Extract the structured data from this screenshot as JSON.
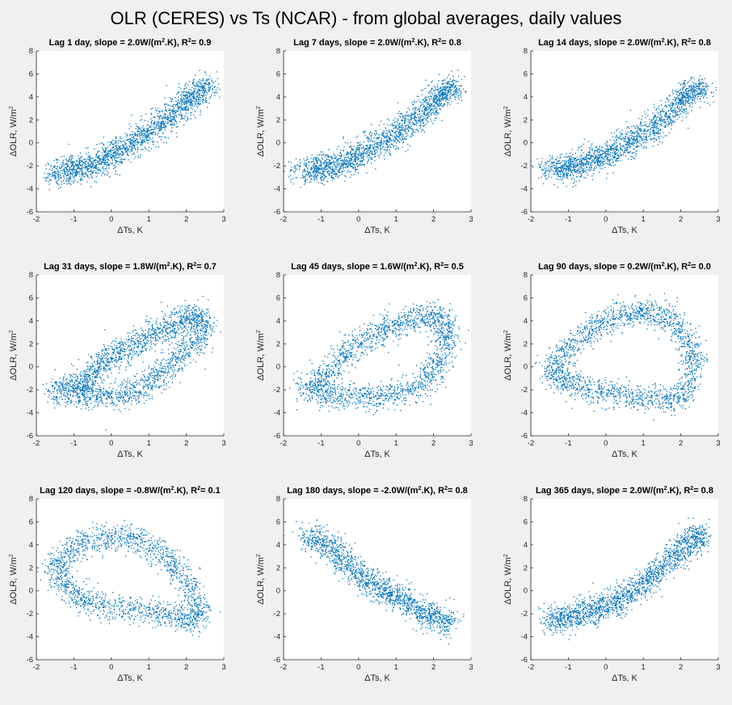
{
  "figure": {
    "title": "OLR (CERES) vs Ts (NCAR) - from global averages, daily values",
    "background": "#f0f0f0",
    "marker_color": "#0072bd"
  },
  "chart_data": [
    {
      "type": "scatter",
      "title_parts": [
        "Lag 1 day, slope = 2.0W/(m",
        "2",
        ".K), R",
        "2",
        "= 0.9"
      ],
      "xlabel": "ΔTs, K",
      "ylabel": [
        "ΔOLR, W/m",
        "2"
      ],
      "xlim": [
        -2,
        3
      ],
      "ylim": [
        -6,
        8
      ],
      "xticks": [
        -2,
        -1,
        0,
        1,
        2,
        3
      ],
      "yticks": [
        -6,
        -4,
        -2,
        0,
        2,
        4,
        6,
        8
      ],
      "grid": false,
      "points": [
        [
          -1.7,
          -2.7
        ],
        [
          -1.2,
          -2.5
        ],
        [
          -1.0,
          -2.3
        ],
        [
          -0.8,
          -2.2
        ],
        [
          -0.5,
          -1.9
        ],
        [
          -0.2,
          -1.5
        ],
        [
          0.0,
          -1.0
        ],
        [
          0.3,
          -0.5
        ],
        [
          0.6,
          0.1
        ],
        [
          0.9,
          0.7
        ],
        [
          1.2,
          1.3
        ],
        [
          1.5,
          2.0
        ],
        [
          1.8,
          2.9
        ],
        [
          2.0,
          3.6
        ],
        [
          2.2,
          4.2
        ],
        [
          2.4,
          4.6
        ],
        [
          2.6,
          5.0
        ]
      ]
    },
    {
      "type": "scatter",
      "title_parts": [
        "Lag 7 days, slope = 2.0W/(m",
        "2",
        ".K), R",
        "2",
        "= 0.8"
      ],
      "xlabel": "ΔTs, K",
      "ylabel": [
        "ΔOLR, W/m",
        "2"
      ],
      "xlim": [
        -2,
        3
      ],
      "ylim": [
        -6,
        8
      ],
      "xticks": [
        -2,
        -1,
        0,
        1,
        2,
        3
      ],
      "yticks": [
        -6,
        -4,
        -2,
        0,
        2,
        4,
        6,
        8
      ],
      "grid": false,
      "points": [
        [
          -1.7,
          -2.6
        ],
        [
          -1.2,
          -2.4
        ],
        [
          -1.0,
          -2.2
        ],
        [
          -0.8,
          -2.1
        ],
        [
          -0.5,
          -1.8
        ],
        [
          -0.2,
          -1.4
        ],
        [
          0.0,
          -1.0
        ],
        [
          0.3,
          -0.5
        ],
        [
          0.6,
          0.0
        ],
        [
          0.9,
          0.6
        ],
        [
          1.2,
          1.3
        ],
        [
          1.5,
          2.0
        ],
        [
          1.8,
          2.8
        ],
        [
          2.0,
          3.6
        ],
        [
          2.2,
          4.2
        ],
        [
          2.4,
          4.5
        ],
        [
          2.6,
          4.8
        ]
      ]
    },
    {
      "type": "scatter",
      "title_parts": [
        "Lag 14 days, slope = 2.0W/(m",
        "2",
        ".K), R",
        "2",
        "= 0.8"
      ],
      "xlabel": "ΔTs, K",
      "ylabel": [
        "ΔOLR, W/m",
        "2"
      ],
      "xlim": [
        -2,
        3
      ],
      "ylim": [
        -6,
        8
      ],
      "xticks": [
        -2,
        -1,
        0,
        1,
        2,
        3
      ],
      "yticks": [
        -6,
        -4,
        -2,
        0,
        2,
        4,
        6,
        8
      ],
      "grid": false,
      "points": [
        [
          -1.7,
          -2.3
        ],
        [
          -1.2,
          -2.2
        ],
        [
          -1.0,
          -2.2
        ],
        [
          -0.8,
          -2.0
        ],
        [
          -0.5,
          -1.7
        ],
        [
          -0.2,
          -1.3
        ],
        [
          0.0,
          -1.0
        ],
        [
          0.3,
          -0.6
        ],
        [
          0.6,
          0.0
        ],
        [
          0.9,
          0.6
        ],
        [
          1.2,
          1.2
        ],
        [
          1.5,
          1.9
        ],
        [
          1.8,
          2.8
        ],
        [
          2.0,
          3.7
        ],
        [
          2.2,
          4.3
        ],
        [
          2.4,
          4.6
        ],
        [
          2.6,
          4.6
        ]
      ]
    },
    {
      "type": "scatter",
      "title_parts": [
        "Lag 31 days, slope = 1.8W/(m",
        "2",
        ".K), R",
        "2",
        "= 0.7"
      ],
      "xlabel": "ΔTs, K",
      "ylabel": [
        "ΔOLR, W/m",
        "2"
      ],
      "xlim": [
        -2,
        3
      ],
      "ylim": [
        -6,
        8
      ],
      "xticks": [
        -2,
        -1,
        0,
        1,
        2,
        3
      ],
      "yticks": [
        -6,
        -4,
        -2,
        0,
        2,
        4,
        6,
        8
      ],
      "grid": false,
      "points": [
        [
          -1.6,
          -2.3
        ],
        [
          -1.2,
          -2.0
        ],
        [
          -0.9,
          -1.8
        ],
        [
          -0.6,
          -0.8
        ],
        [
          -0.3,
          0.2
        ],
        [
          0.0,
          0.8
        ],
        [
          0.4,
          1.5
        ],
        [
          0.8,
          2.2
        ],
        [
          1.2,
          3.0
        ],
        [
          1.6,
          3.6
        ],
        [
          2.0,
          4.2
        ],
        [
          2.3,
          4.5
        ],
        [
          2.5,
          3.5
        ],
        [
          2.2,
          2.0
        ],
        [
          1.8,
          0.8
        ],
        [
          1.4,
          -0.5
        ],
        [
          1.0,
          -1.5
        ],
        [
          0.5,
          -2.2
        ],
        [
          0.0,
          -2.6
        ],
        [
          -0.5,
          -2.5
        ],
        [
          -1.0,
          -2.0
        ]
      ]
    },
    {
      "type": "scatter",
      "title_parts": [
        "Lag 45 days, slope = 1.6W/(m",
        "2",
        ".K), R",
        "2",
        "= 0.5"
      ],
      "xlabel": "ΔTs, K",
      "ylabel": [
        "ΔOLR, W/m",
        "2"
      ],
      "xlim": [
        -2,
        3
      ],
      "ylim": [
        -6,
        8
      ],
      "xticks": [
        -2,
        -1,
        0,
        1,
        2,
        3
      ],
      "yticks": [
        -6,
        -4,
        -2,
        0,
        2,
        4,
        6,
        8
      ],
      "grid": false,
      "points": [
        [
          -1.6,
          -2.0
        ],
        [
          -1.0,
          -1.2
        ],
        [
          -0.6,
          0.2
        ],
        [
          -0.2,
          1.5
        ],
        [
          0.3,
          2.6
        ],
        [
          0.8,
          3.4
        ],
        [
          1.3,
          4.0
        ],
        [
          1.8,
          4.4
        ],
        [
          2.2,
          4.3
        ],
        [
          2.4,
          3.0
        ],
        [
          2.3,
          1.2
        ],
        [
          2.0,
          -0.5
        ],
        [
          1.6,
          -1.7
        ],
        [
          1.0,
          -2.3
        ],
        [
          0.4,
          -2.6
        ],
        [
          -0.2,
          -2.7
        ],
        [
          -0.8,
          -2.4
        ],
        [
          -1.2,
          -2.0
        ]
      ]
    },
    {
      "type": "scatter",
      "title_parts": [
        "Lag 90 days, slope = 0.2W/(m",
        "2",
        ".K), R",
        "2",
        "= 0.0"
      ],
      "xlabel": "ΔTs, K",
      "ylabel": [
        "ΔOLR, W/m",
        "2"
      ],
      "xlim": [
        -2,
        3
      ],
      "ylim": [
        -6,
        8
      ],
      "xticks": [
        -2,
        -1,
        0,
        1,
        2,
        3
      ],
      "yticks": [
        -6,
        -4,
        -2,
        0,
        2,
        4,
        6,
        8
      ],
      "grid": false,
      "points": [
        [
          -1.5,
          -0.3
        ],
        [
          -1.1,
          1.2
        ],
        [
          -0.6,
          2.6
        ],
        [
          -0.1,
          3.8
        ],
        [
          0.4,
          4.5
        ],
        [
          0.9,
          4.8
        ],
        [
          1.4,
          4.6
        ],
        [
          1.8,
          3.8
        ],
        [
          2.2,
          2.2
        ],
        [
          2.4,
          0.3
        ],
        [
          2.2,
          -1.8
        ],
        [
          1.8,
          -2.8
        ],
        [
          1.2,
          -2.9
        ],
        [
          0.5,
          -2.5
        ],
        [
          -0.1,
          -2.3
        ],
        [
          -0.7,
          -1.8
        ],
        [
          -1.2,
          -1.0
        ],
        [
          -1.5,
          -0.3
        ]
      ]
    },
    {
      "type": "scatter",
      "title_parts": [
        "Lag 120 days, slope = -0.8W/(m",
        "2",
        ".K), R",
        "2",
        "= 0.1"
      ],
      "xlabel": "ΔTs, K",
      "ylabel": [
        "ΔOLR, W/m",
        "2"
      ],
      "xlim": [
        -2,
        3
      ],
      "ylim": [
        -6,
        8
      ],
      "xticks": [
        -2,
        -1,
        0,
        1,
        2,
        3
      ],
      "yticks": [
        -6,
        -4,
        -2,
        0,
        2,
        4,
        6,
        8
      ],
      "grid": false,
      "points": [
        [
          -1.5,
          1.8
        ],
        [
          -1.2,
          3.2
        ],
        [
          -0.7,
          4.2
        ],
        [
          -0.1,
          4.8
        ],
        [
          0.5,
          4.6
        ],
        [
          1.1,
          3.8
        ],
        [
          1.6,
          2.6
        ],
        [
          2.0,
          1.0
        ],
        [
          2.3,
          -1.2
        ],
        [
          2.3,
          -2.6
        ],
        [
          1.8,
          -2.4
        ],
        [
          1.2,
          -1.9
        ],
        [
          0.5,
          -1.6
        ],
        [
          -0.2,
          -1.3
        ],
        [
          -0.8,
          -0.6
        ],
        [
          -1.2,
          0.4
        ],
        [
          -1.5,
          1.8
        ]
      ]
    },
    {
      "type": "scatter",
      "title_parts": [
        "Lag 180 days, slope = -2.0W/(m",
        "2",
        ".K), R",
        "2",
        "= 0.8"
      ],
      "xlabel": "ΔTs, K",
      "ylabel": [
        "ΔOLR, W/m",
        "2"
      ],
      "xlim": [
        -2,
        3
      ],
      "ylim": [
        -6,
        8
      ],
      "xticks": [
        -2,
        -1,
        0,
        1,
        2,
        3
      ],
      "yticks": [
        -6,
        -4,
        -2,
        0,
        2,
        4,
        6,
        8
      ],
      "grid": false,
      "points": [
        [
          -1.5,
          4.6
        ],
        [
          -1.1,
          4.4
        ],
        [
          -0.8,
          3.9
        ],
        [
          -0.5,
          3.0
        ],
        [
          -0.2,
          2.0
        ],
        [
          0.1,
          1.2
        ],
        [
          0.4,
          0.6
        ],
        [
          0.7,
          0.0
        ],
        [
          1.0,
          -0.5
        ],
        [
          1.3,
          -1.1
        ],
        [
          1.6,
          -1.7
        ],
        [
          1.9,
          -2.2
        ],
        [
          2.2,
          -2.6
        ],
        [
          2.5,
          -2.9
        ]
      ]
    },
    {
      "type": "scatter",
      "title_parts": [
        "Lag 365 days, slope = 2.0W/(m",
        "2",
        ".K), R",
        "2",
        "= 0.8"
      ],
      "xlabel": "ΔTs, K",
      "ylabel": [
        "ΔOLR, W/m",
        "2"
      ],
      "xlim": [
        -2,
        3
      ],
      "ylim": [
        -6,
        8
      ],
      "xticks": [
        -2,
        -1,
        0,
        1,
        2,
        3
      ],
      "yticks": [
        -6,
        -4,
        -2,
        0,
        2,
        4,
        6,
        8
      ],
      "grid": false,
      "points": [
        [
          -1.6,
          -2.6
        ],
        [
          -1.2,
          -2.4
        ],
        [
          -1.0,
          -2.3
        ],
        [
          -0.7,
          -2.0
        ],
        [
          -0.4,
          -1.8
        ],
        [
          -0.1,
          -1.4
        ],
        [
          0.2,
          -1.1
        ],
        [
          0.5,
          -0.6
        ],
        [
          0.8,
          0.1
        ],
        [
          1.1,
          0.9
        ],
        [
          1.4,
          1.7
        ],
        [
          1.7,
          2.6
        ],
        [
          2.0,
          3.5
        ],
        [
          2.2,
          4.2
        ],
        [
          2.4,
          4.6
        ],
        [
          2.6,
          4.8
        ]
      ]
    }
  ]
}
